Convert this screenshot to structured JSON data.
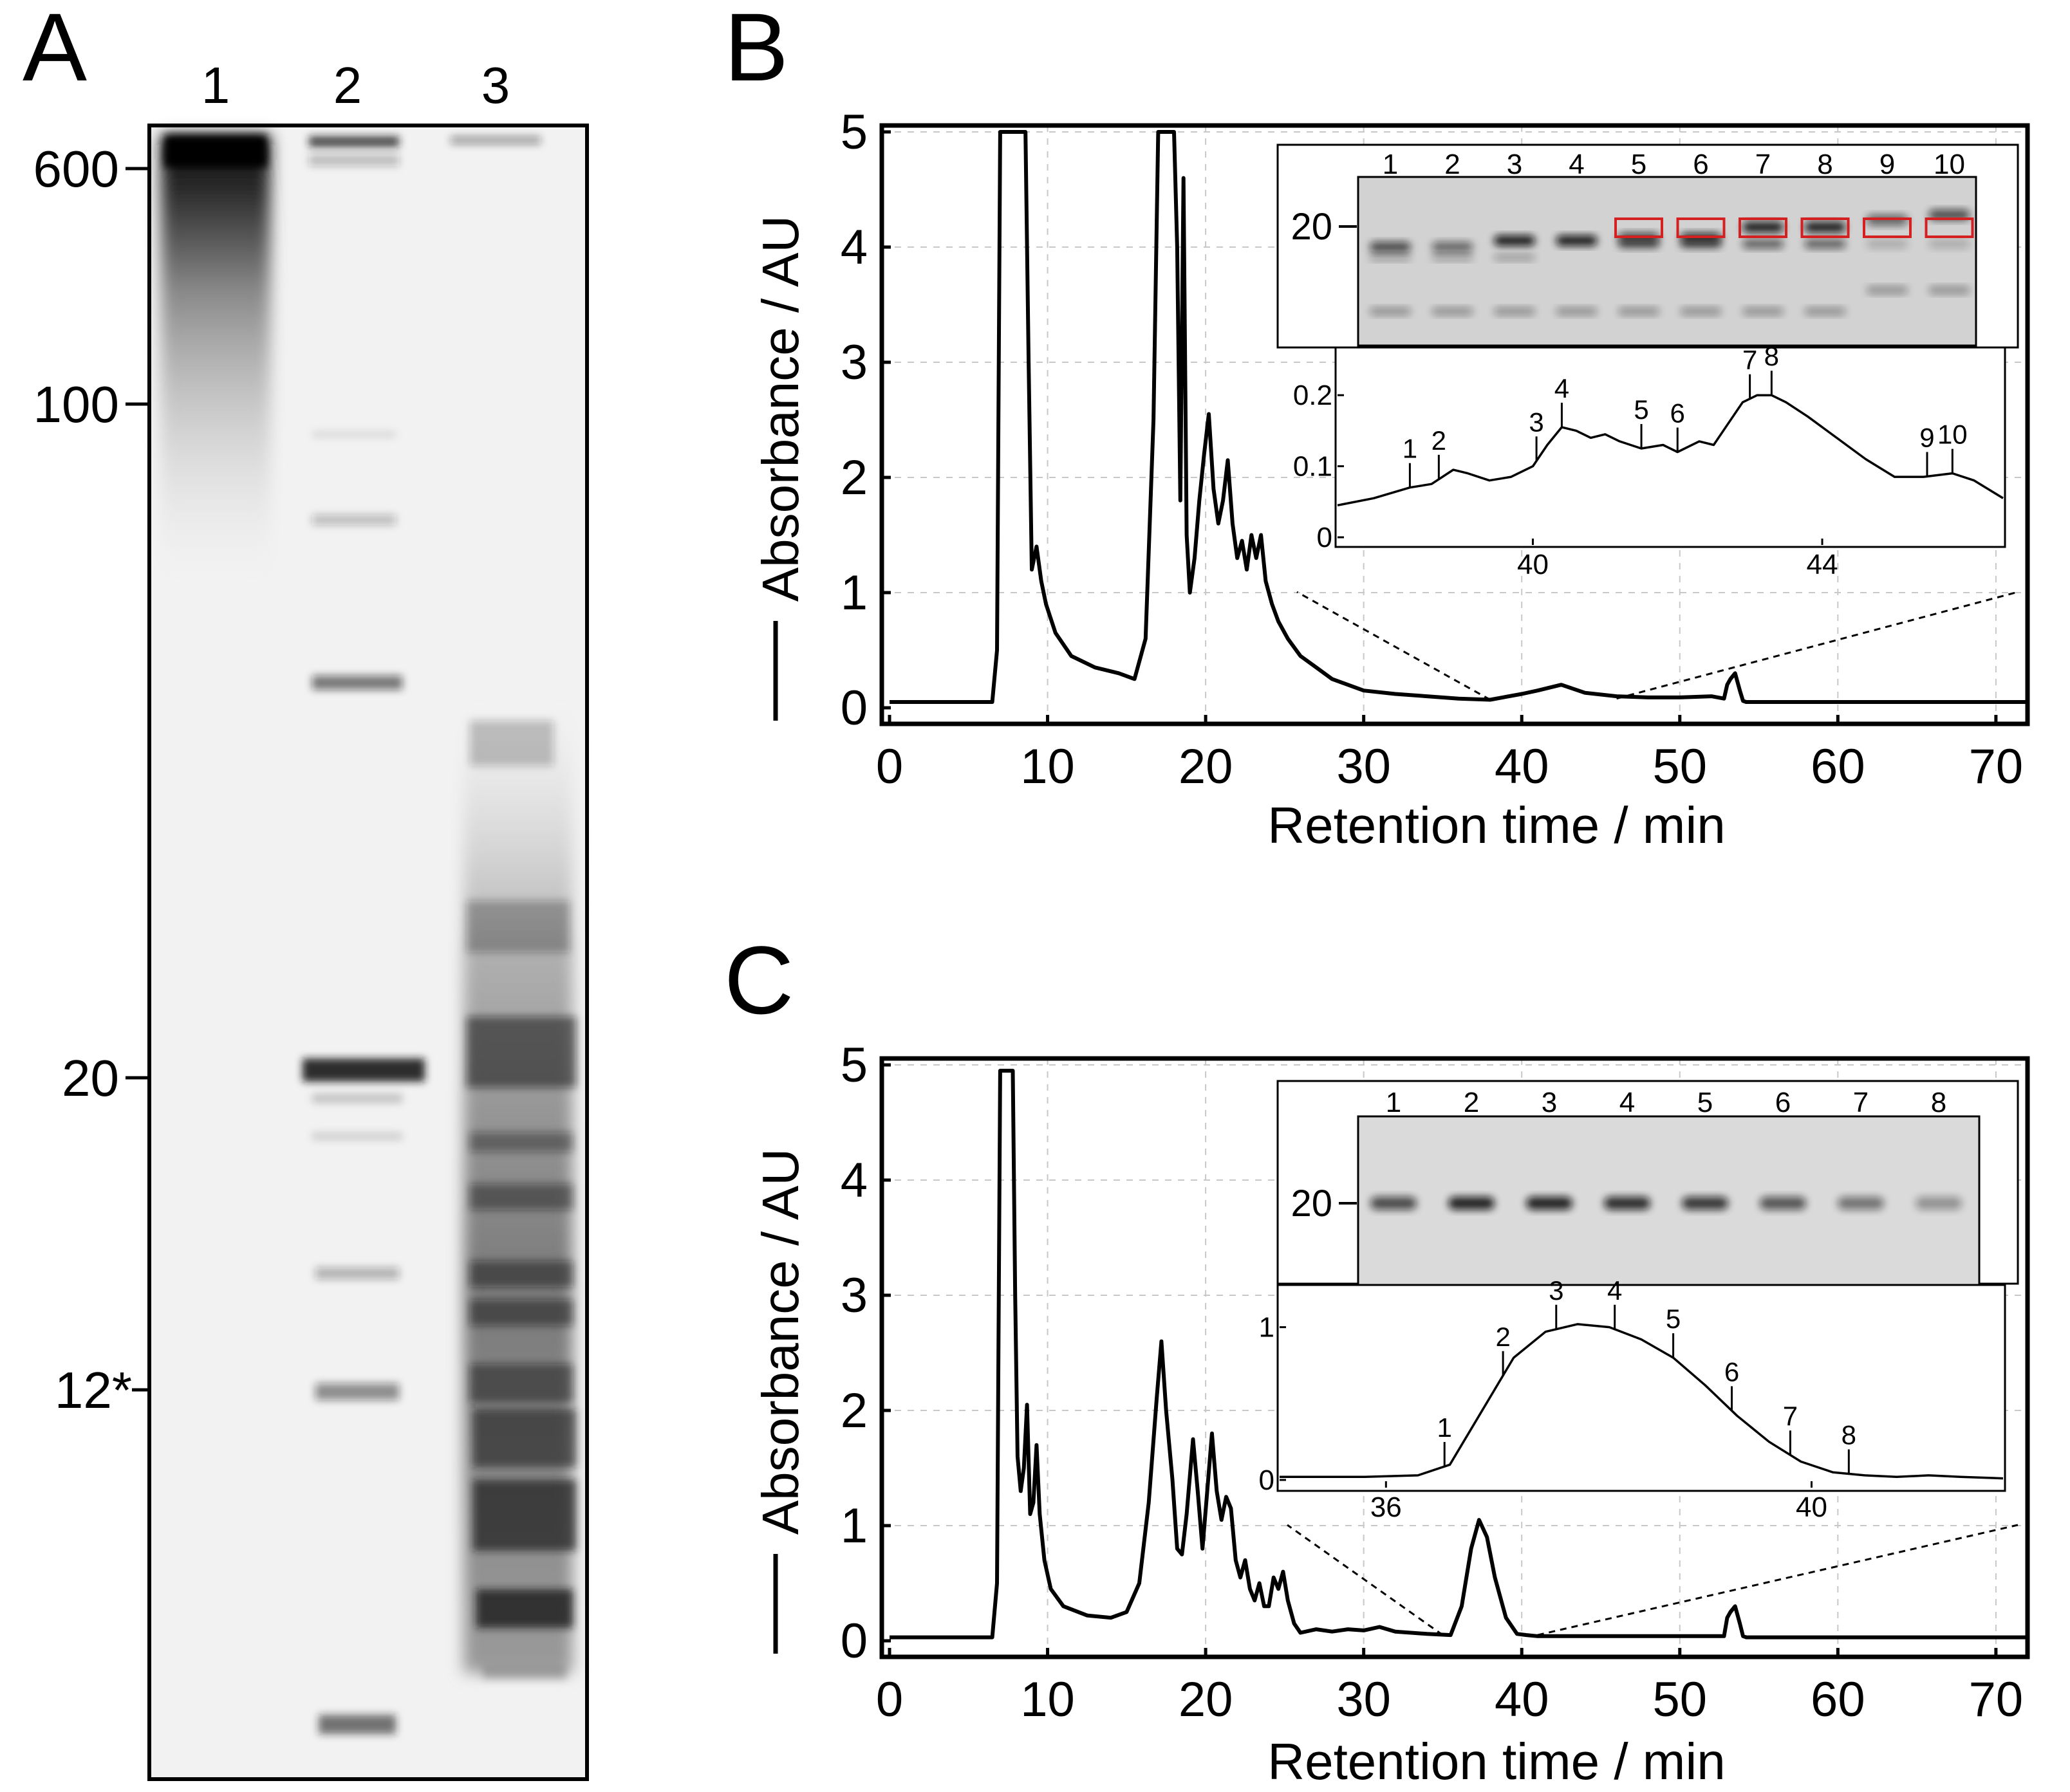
{
  "panels": {
    "A": {
      "label": "A",
      "lanes": [
        "1",
        "2",
        "3"
      ],
      "markers": [
        "600",
        "100",
        "20",
        "12*"
      ],
      "marker_values": [
        600,
        100,
        20,
        12
      ]
    },
    "B": {
      "label": "B"
    },
    "C": {
      "label": "C"
    }
  },
  "chart_data": [
    {
      "panel": "B",
      "type": "line",
      "xlabel": "Retention time / min",
      "ylabel": "Absorbance / AU",
      "xlim": [
        0,
        72
      ],
      "ylim": [
        0,
        5
      ],
      "xticks": [
        "0",
        "10",
        "20",
        "30",
        "40",
        "50",
        "60",
        "70"
      ],
      "yticks": [
        "0",
        "1",
        "2",
        "3",
        "4",
        "5"
      ],
      "grid": true,
      "zoom_region": [
        38,
        46
      ],
      "series": [
        {
          "x": [
            0,
            6.5,
            6.8,
            7,
            8.6,
            8.8,
            9.0,
            9.3,
            9.6,
            9.9,
            10.5,
            11.5,
            13,
            14.5,
            15.5,
            16.2,
            16.7,
            17,
            18,
            18.2,
            18.4,
            18.6,
            18.8,
            19.0,
            19.3,
            19.6,
            19.9,
            20.2,
            20.5,
            20.8,
            21.1,
            21.4,
            21.7,
            22.0,
            22.3,
            22.6,
            22.9,
            23.2,
            23.5,
            23.8,
            24.2,
            24.6,
            25.2,
            26,
            27,
            28,
            30,
            32,
            34,
            36,
            38,
            40,
            41,
            42.5,
            44,
            46,
            48,
            50,
            52,
            52.8,
            53,
            53.2,
            53.5,
            53.8,
            54,
            54.2,
            56,
            60,
            65,
            72
          ],
          "y": [
            0.05,
            0.05,
            0.5,
            5,
            5,
            3,
            1.2,
            1.4,
            1.1,
            0.9,
            0.65,
            0.45,
            0.35,
            0.3,
            0.25,
            0.6,
            2.5,
            5,
            5,
            4,
            1.8,
            4.6,
            1.5,
            1.0,
            1.3,
            1.8,
            2.2,
            2.55,
            1.9,
            1.6,
            1.8,
            2.15,
            1.6,
            1.3,
            1.45,
            1.2,
            1.5,
            1.3,
            1.5,
            1.1,
            0.9,
            0.75,
            0.6,
            0.45,
            0.35,
            0.25,
            0.15,
            0.12,
            0.1,
            0.08,
            0.07,
            0.12,
            0.15,
            0.2,
            0.13,
            0.1,
            0.09,
            0.09,
            0.1,
            0.08,
            0.2,
            0.25,
            0.3,
            0.15,
            0.06,
            0.05,
            0.05,
            0.05,
            0.05,
            0.05
          ]
        }
      ],
      "inset": {
        "xlim": [
          37.3,
          46.5
        ],
        "ylim": [
          0,
          0.24
        ],
        "xticks": [
          "40",
          "44"
        ],
        "yticks": [
          "0",
          "0.1",
          "0.2"
        ],
        "x": [
          37.3,
          37.8,
          38.3,
          38.6,
          38.9,
          39.1,
          39.4,
          39.7,
          40.0,
          40.2,
          40.4,
          40.6,
          40.8,
          41.0,
          41.2,
          41.5,
          41.8,
          42.0,
          42.3,
          42.5,
          42.7,
          42.9,
          43.1,
          43.3,
          43.5,
          43.8,
          44.2,
          44.6,
          45.0,
          45.4,
          45.8,
          46.1,
          46.5
        ],
        "y": [
          0.045,
          0.055,
          0.07,
          0.075,
          0.095,
          0.09,
          0.08,
          0.085,
          0.1,
          0.13,
          0.155,
          0.15,
          0.14,
          0.145,
          0.135,
          0.125,
          0.13,
          0.12,
          0.135,
          0.13,
          0.16,
          0.19,
          0.2,
          0.2,
          0.19,
          0.17,
          0.14,
          0.11,
          0.085,
          0.085,
          0.09,
          0.08,
          0.055
        ],
        "fractions": [
          {
            "label": "1",
            "x": 38.3
          },
          {
            "label": "2",
            "x": 38.7
          },
          {
            "label": "3",
            "x": 40.05
          },
          {
            "label": "4",
            "x": 40.4
          },
          {
            "label": "5",
            "x": 41.5
          },
          {
            "label": "6",
            "x": 42.0
          },
          {
            "label": "7",
            "x": 43.0
          },
          {
            "label": "8",
            "x": 43.3
          },
          {
            "label": "9",
            "x": 45.45
          },
          {
            "label": "10",
            "x": 45.8
          }
        ]
      },
      "gel_inset": {
        "lanes": [
          "1",
          "2",
          "3",
          "4",
          "5",
          "6",
          "7",
          "8",
          "9",
          "10"
        ],
        "marker": "20",
        "boxed_lanes": [
          "5",
          "6",
          "7",
          "8",
          "9",
          "10"
        ],
        "box_color": "#d42020"
      }
    },
    {
      "panel": "C",
      "type": "line",
      "xlabel": "Retention time / min",
      "ylabel": "Absorbance / AU",
      "xlim": [
        0,
        72
      ],
      "ylim": [
        0,
        5
      ],
      "xticks": [
        "0",
        "10",
        "20",
        "30",
        "40",
        "50",
        "60",
        "70"
      ],
      "yticks": [
        "0",
        "1",
        "2",
        "3",
        "4",
        "5"
      ],
      "grid": true,
      "zoom_region": [
        35,
        41
      ],
      "series": [
        {
          "x": [
            0,
            6.5,
            6.8,
            7,
            7.8,
            7.95,
            8.1,
            8.3,
            8.5,
            8.7,
            8.9,
            9.1,
            9.3,
            9.5,
            9.8,
            10.2,
            11,
            12.5,
            14,
            15,
            15.8,
            16.4,
            16.9,
            17.2,
            17.5,
            17.9,
            18.2,
            18.5,
            18.8,
            19.2,
            19.5,
            19.8,
            20.1,
            20.4,
            20.7,
            21.0,
            21.3,
            21.6,
            21.9,
            22.2,
            22.5,
            22.8,
            23.1,
            23.4,
            23.7,
            24.0,
            24.3,
            24.6,
            24.9,
            25.2,
            25.6,
            26,
            27,
            28,
            29,
            30,
            31,
            32,
            34,
            35.5,
            36.2,
            36.8,
            37.3,
            37.8,
            38.3,
            39,
            39.7,
            40.3,
            41,
            42,
            44,
            48,
            52,
            52.8,
            53,
            53.2,
            53.5,
            53.8,
            54,
            54.2,
            56,
            60,
            65,
            72
          ],
          "y": [
            0.03,
            0.03,
            0.5,
            4.95,
            4.95,
            3.0,
            1.6,
            1.3,
            1.5,
            2.05,
            1.1,
            1.2,
            1.7,
            1.1,
            0.7,
            0.45,
            0.3,
            0.22,
            0.2,
            0.25,
            0.5,
            1.2,
            2.1,
            2.6,
            2.0,
            1.4,
            0.8,
            0.75,
            1.1,
            1.75,
            1.3,
            0.8,
            1.3,
            1.8,
            1.3,
            1.05,
            1.25,
            1.15,
            0.7,
            0.55,
            0.7,
            0.45,
            0.35,
            0.5,
            0.3,
            0.3,
            0.55,
            0.45,
            0.6,
            0.35,
            0.15,
            0.07,
            0.1,
            0.08,
            0.1,
            0.09,
            0.12,
            0.08,
            0.06,
            0.05,
            0.3,
            0.8,
            1.05,
            0.9,
            0.55,
            0.2,
            0.06,
            0.05,
            0.04,
            0.04,
            0.04,
            0.04,
            0.04,
            0.04,
            0.2,
            0.25,
            0.3,
            0.15,
            0.04,
            0.03,
            0.03,
            0.03,
            0.03,
            0.03
          ]
        }
      ],
      "inset": {
        "xlim": [
          35.0,
          41.8
        ],
        "ylim": [
          0,
          1.15
        ],
        "xticks": [
          "36",
          "40"
        ],
        "yticks": [
          "0",
          "1"
        ],
        "x": [
          35.0,
          35.8,
          36.3,
          36.6,
          36.9,
          37.2,
          37.5,
          37.8,
          38.1,
          38.4,
          38.7,
          39.0,
          39.3,
          39.6,
          39.9,
          40.2,
          40.5,
          40.8,
          41.1,
          41.4,
          41.8
        ],
        "y": [
          0.02,
          0.02,
          0.03,
          0.1,
          0.45,
          0.8,
          0.97,
          1.02,
          1.0,
          0.92,
          0.8,
          0.62,
          0.42,
          0.25,
          0.12,
          0.05,
          0.03,
          0.02,
          0.03,
          0.02,
          0.01
        ],
        "fractions": [
          {
            "label": "1",
            "x": 36.55
          },
          {
            "label": "2",
            "x": 37.1
          },
          {
            "label": "3",
            "x": 37.6
          },
          {
            "label": "4",
            "x": 38.15
          },
          {
            "label": "5",
            "x": 38.7
          },
          {
            "label": "6",
            "x": 39.25
          },
          {
            "label": "7",
            "x": 39.8
          },
          {
            "label": "8",
            "x": 40.35
          }
        ]
      },
      "gel_inset": {
        "lanes": [
          "1",
          "2",
          "3",
          "4",
          "5",
          "6",
          "7",
          "8"
        ],
        "marker": "20"
      }
    }
  ]
}
